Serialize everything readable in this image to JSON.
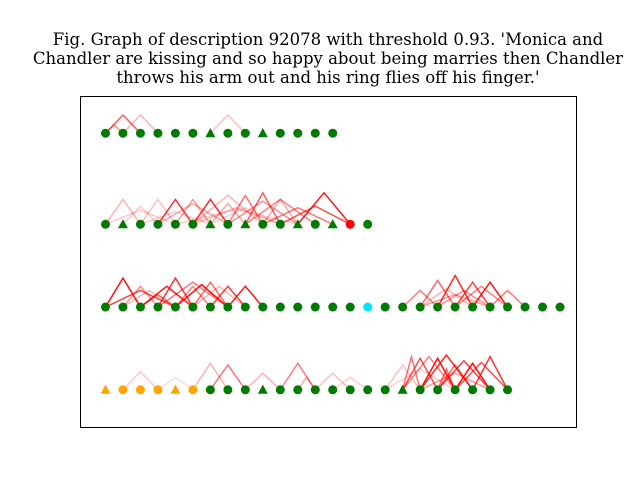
{
  "chart_data": {
    "type": "scatter",
    "title": {
      "lines": [
        "Fig. Graph of description 92078 with threshold 0.93. 'Monica and",
        "Chandler are kissing and so happy about being marries then Chandler",
        "throws his arm out and his ring flies off his finger.'"
      ]
    },
    "xlabel": "",
    "ylabel": "",
    "xlim": [
      0,
      27
    ],
    "ylim": [
      0,
      4
    ],
    "axes_ticks": "none",
    "colors": {
      "green": "#007a00",
      "orange": "#ffa500",
      "cyan": "#00e5ff",
      "edge": "#ff0000"
    },
    "rows": [
      {
        "y": 3.55,
        "nodes": [
          [
            "circle",
            "green"
          ],
          [
            "circle",
            "green"
          ],
          [
            "circle",
            "green"
          ],
          [
            "circle",
            "green"
          ],
          [
            "circle",
            "green"
          ],
          [
            "circle",
            "green"
          ],
          [
            "triangle",
            "green"
          ],
          [
            "circle",
            "green"
          ],
          [
            "circle",
            "green"
          ],
          [
            "triangle",
            "green"
          ],
          [
            "circle",
            "green"
          ],
          [
            "circle",
            "green"
          ],
          [
            "circle",
            "green"
          ],
          [
            "circle",
            "green"
          ]
        ],
        "edges": [
          [
            0,
            2,
            0.65,
            0.22
          ],
          [
            0,
            1,
            0.45,
            0.1
          ],
          [
            1,
            3,
            0.3,
            0.22
          ],
          [
            6,
            8,
            0.25,
            0.22
          ]
        ]
      },
      {
        "y": 2.45,
        "nodes": [
          [
            "circle",
            "green"
          ],
          [
            "triangle",
            "green"
          ],
          [
            "circle",
            "green"
          ],
          [
            "circle",
            "green"
          ],
          [
            "circle",
            "green"
          ],
          [
            "circle",
            "green"
          ],
          [
            "triangle",
            "green"
          ],
          [
            "circle",
            "green"
          ],
          [
            "triangle",
            "green"
          ],
          [
            "circle",
            "green"
          ],
          [
            "circle",
            "green"
          ],
          [
            "triangle",
            "green"
          ],
          [
            "circle",
            "green"
          ],
          [
            "triangle",
            "green"
          ],
          [
            "circle",
            "red"
          ],
          [
            "circle",
            "green"
          ]
        ],
        "edges": [
          [
            0,
            2,
            0.3,
            0.3
          ],
          [
            0,
            4,
            0.22,
            0.17
          ],
          [
            1,
            3,
            0.2,
            0.22
          ],
          [
            2,
            4,
            0.25,
            0.3
          ],
          [
            2,
            6,
            0.2,
            0.15
          ],
          [
            3,
            5,
            0.8,
            0.3
          ],
          [
            3,
            7,
            0.35,
            0.25
          ],
          [
            4,
            6,
            0.4,
            0.3
          ],
          [
            5,
            7,
            0.85,
            0.3
          ],
          [
            5,
            9,
            0.3,
            0.35
          ],
          [
            6,
            8,
            0.35,
            0.25
          ],
          [
            6,
            10,
            0.2,
            0.2
          ],
          [
            7,
            9,
            0.55,
            0.35
          ],
          [
            7,
            11,
            0.45,
            0.28
          ],
          [
            8,
            10,
            0.65,
            0.38
          ],
          [
            8,
            12,
            0.5,
            0.3
          ],
          [
            9,
            11,
            0.35,
            0.3
          ],
          [
            9,
            13,
            0.55,
            0.2
          ],
          [
            10,
            14,
            0.7,
            0.22
          ],
          [
            11,
            14,
            0.9,
            0.38
          ],
          [
            5,
            10,
            0.3,
            0.2
          ],
          [
            4,
            11,
            0.2,
            0.18
          ]
        ]
      },
      {
        "y": 1.45,
        "nodes": [
          [
            "circle",
            "green"
          ],
          [
            "circle",
            "green"
          ],
          [
            "circle",
            "green"
          ],
          [
            "circle",
            "green"
          ],
          [
            "circle",
            "green"
          ],
          [
            "circle",
            "green"
          ],
          [
            "circle",
            "green"
          ],
          [
            "circle",
            "green"
          ],
          [
            "circle",
            "green"
          ],
          [
            "circle",
            "green"
          ],
          [
            "circle",
            "green"
          ],
          [
            "circle",
            "green"
          ],
          [
            "circle",
            "green"
          ],
          [
            "circle",
            "green"
          ],
          [
            "circle",
            "green"
          ],
          [
            "circle",
            "cyan"
          ],
          [
            "circle",
            "green"
          ],
          [
            "circle",
            "green"
          ],
          [
            "circle",
            "green"
          ],
          [
            "circle",
            "green"
          ],
          [
            "circle",
            "green"
          ],
          [
            "circle",
            "green"
          ],
          [
            "circle",
            "green"
          ],
          [
            "circle",
            "green"
          ],
          [
            "circle",
            "green"
          ],
          [
            "circle",
            "green"
          ],
          [
            "circle",
            "green"
          ]
        ],
        "edges": [
          [
            0,
            2,
            0.95,
            0.35
          ],
          [
            0,
            4,
            0.75,
            0.2
          ],
          [
            1,
            3,
            0.45,
            0.25
          ],
          [
            2,
            4,
            0.55,
            0.15
          ],
          [
            2,
            5,
            0.9,
            0.25
          ],
          [
            3,
            5,
            0.8,
            0.35
          ],
          [
            3,
            7,
            0.55,
            0.3
          ],
          [
            4,
            6,
            0.5,
            0.25
          ],
          [
            4,
            7,
            0.95,
            0.27
          ],
          [
            5,
            7,
            0.6,
            0.3
          ],
          [
            5,
            8,
            0.3,
            0.25
          ],
          [
            6,
            8,
            0.75,
            0.25
          ],
          [
            7,
            9,
            0.9,
            0.25
          ],
          [
            1,
            4,
            0.3,
            0.2
          ],
          [
            17,
            19,
            0.5,
            0.2
          ],
          [
            18,
            20,
            0.6,
            0.32
          ],
          [
            18,
            21,
            0.3,
            0.22
          ],
          [
            19,
            21,
            0.85,
            0.38
          ],
          [
            19,
            22,
            0.45,
            0.2
          ],
          [
            20,
            22,
            0.75,
            0.3
          ],
          [
            20,
            23,
            0.5,
            0.25
          ],
          [
            21,
            23,
            0.9,
            0.3
          ],
          [
            22,
            24,
            0.55,
            0.2
          ],
          [
            18,
            22,
            0.4,
            0.15
          ]
        ]
      },
      {
        "y": 0.45,
        "nodes": [
          [
            "triangle",
            "orange"
          ],
          [
            "circle",
            "orange"
          ],
          [
            "circle",
            "orange"
          ],
          [
            "circle",
            "orange"
          ],
          [
            "triangle",
            "orange"
          ],
          [
            "circle",
            "orange"
          ],
          [
            "circle",
            "green"
          ],
          [
            "circle",
            "green"
          ],
          [
            "circle",
            "green"
          ],
          [
            "triangle",
            "green"
          ],
          [
            "circle",
            "green"
          ],
          [
            "circle",
            "green"
          ],
          [
            "circle",
            "green"
          ],
          [
            "circle",
            "green"
          ],
          [
            "circle",
            "green"
          ],
          [
            "circle",
            "green"
          ],
          [
            "circle",
            "green"
          ],
          [
            "triangle",
            "green"
          ],
          [
            "circle",
            "green"
          ],
          [
            "circle",
            "green"
          ],
          [
            "circle",
            "green"
          ],
          [
            "circle",
            "green"
          ],
          [
            "circle",
            "green"
          ],
          [
            "circle",
            "green"
          ]
        ],
        "edges": [
          [
            1,
            3,
            0.22,
            0.22
          ],
          [
            3,
            5,
            0.15,
            0.15
          ],
          [
            5,
            7,
            0.3,
            0.32
          ],
          [
            6,
            8,
            0.55,
            0.3
          ],
          [
            8,
            10,
            0.3,
            0.2
          ],
          [
            10,
            12,
            0.5,
            0.32
          ],
          [
            11,
            12,
            0.35,
            0.15
          ],
          [
            12,
            14,
            0.25,
            0.2
          ],
          [
            13,
            15,
            0.2,
            0.15
          ],
          [
            16,
            18,
            0.25,
            0.3
          ],
          [
            17,
            18,
            0.55,
            0.4
          ],
          [
            17,
            19,
            0.7,
            0.38
          ],
          [
            18,
            20,
            0.95,
            0.38
          ],
          [
            17,
            20,
            0.5,
            0.4
          ],
          [
            18,
            21,
            0.85,
            0.42
          ],
          [
            19,
            21,
            0.6,
            0.3
          ],
          [
            19,
            22,
            0.75,
            0.35
          ],
          [
            20,
            22,
            0.95,
            0.32
          ],
          [
            20,
            23,
            0.7,
            0.33
          ],
          [
            21,
            23,
            0.8,
            0.4
          ],
          [
            18,
            22,
            0.4,
            0.2
          ],
          [
            19,
            20,
            0.6,
            0.25
          ],
          [
            16,
            20,
            0.2,
            0.25
          ]
        ]
      }
    ]
  }
}
